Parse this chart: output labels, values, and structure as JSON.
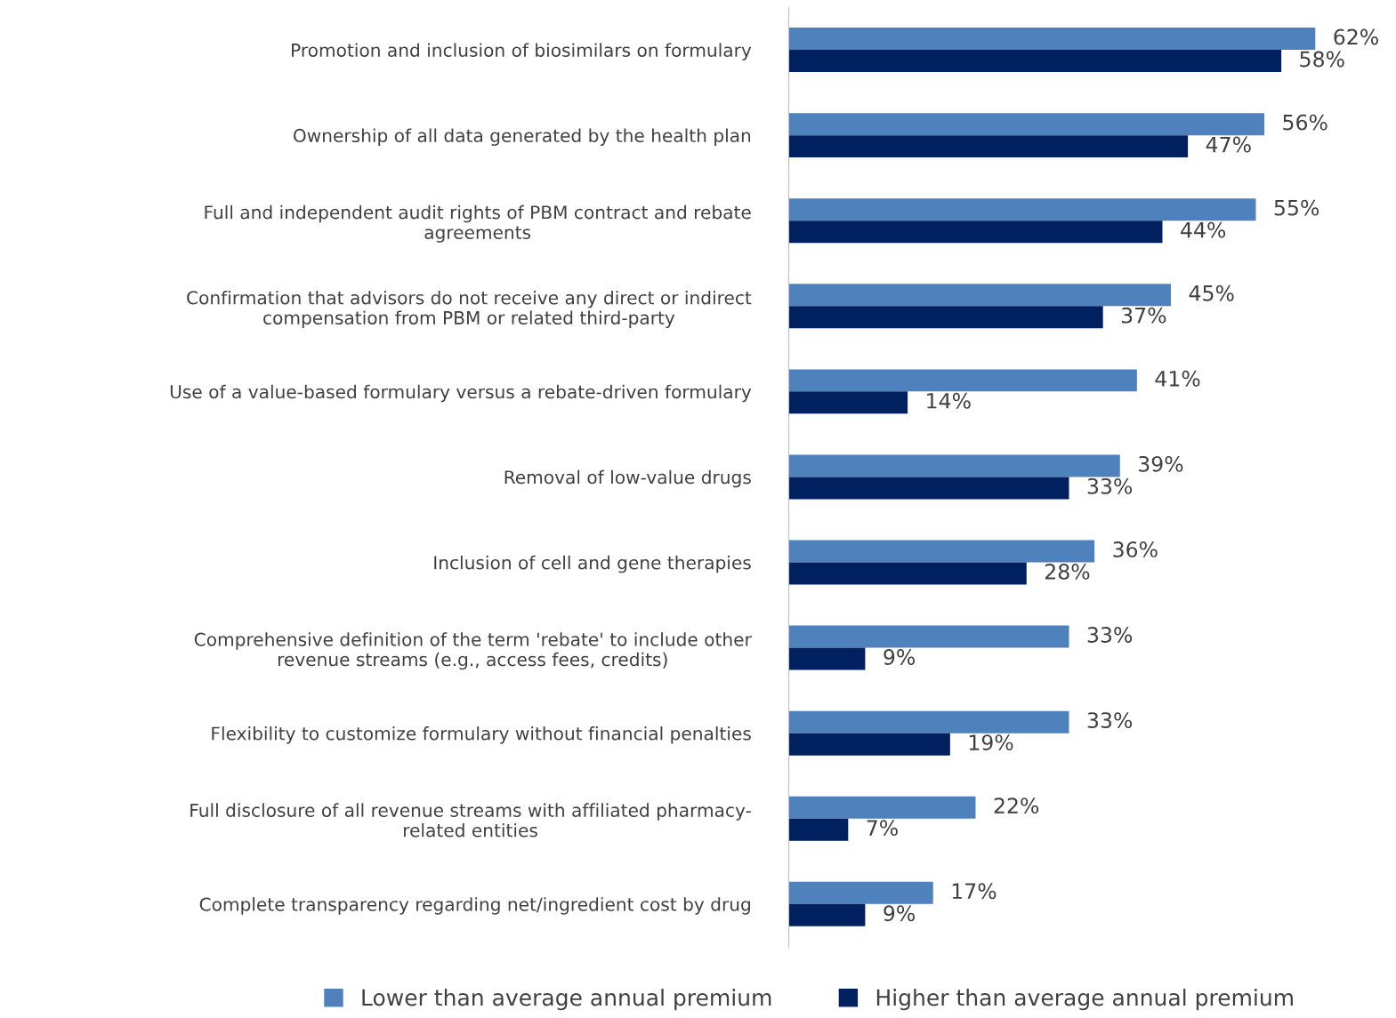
{
  "chart_data": {
    "type": "bar",
    "orientation": "horizontal",
    "categories": [
      "Promotion and inclusion of biosimilars on formulary",
      "Ownership of all data generated by the health plan",
      "Full and independent audit rights of PBM contract and rebate\nagreements",
      "Confirmation that advisors do not receive any direct or indirect\ncompensation from PBM or related third-party",
      "Use of a value-based formulary versus a rebate-driven formulary",
      "Removal of low-value drugs",
      "Inclusion of cell and gene therapies",
      "Comprehensive definition of the term 'rebate' to include other\nrevenue streams (e.g., access fees, credits)",
      "Flexibility to customize formulary without financial penalties",
      "Full disclosure of all revenue streams with affiliated pharmacy-\nrelated entities",
      "Complete transparency regarding net/ingredient cost by drug"
    ],
    "series": [
      {
        "name": "Lower than average annual premium",
        "color": "#4f81bd",
        "values": [
          62,
          56,
          55,
          45,
          41,
          39,
          36,
          33,
          33,
          22,
          17
        ],
        "value_labels": [
          "62%",
          "56%",
          "55%",
          "45%",
          "41%",
          "39%",
          "36%",
          "33%",
          "33%",
          "22%",
          "17%"
        ]
      },
      {
        "name": "Higher than average annual premium",
        "color": "#002060",
        "values": [
          58,
          47,
          44,
          37,
          14,
          33,
          28,
          9,
          19,
          7,
          9
        ],
        "value_labels": [
          "58%",
          "47%",
          "44%",
          "37%",
          "14%",
          "33%",
          "28%",
          "9%",
          "19%",
          "7%",
          "9%"
        ]
      }
    ],
    "legend": "bottom"
  }
}
